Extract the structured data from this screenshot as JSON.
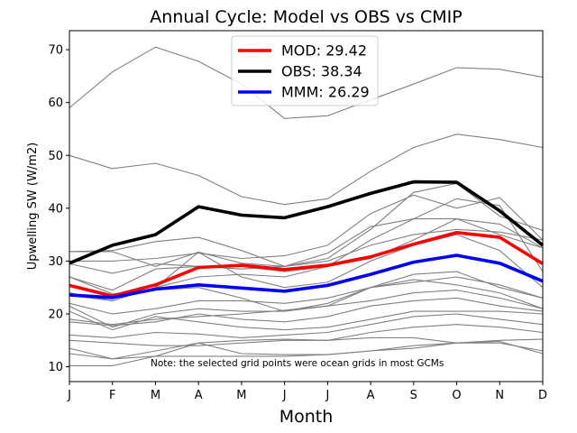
{
  "chart_data": {
    "type": "line",
    "title": "Annual Cycle: Model vs OBS vs CMIP",
    "xlabel": "Month",
    "ylabel": "Upwelling SW (W/m2)",
    "categories": [
      "J",
      "F",
      "M",
      "A",
      "M",
      "J",
      "J",
      "A",
      "S",
      "O",
      "N",
      "D"
    ],
    "ylim": [
      7.2,
      73.6
    ],
    "yticks": [
      10,
      20,
      30,
      40,
      50,
      60,
      70
    ],
    "annotation": "Note: the selected grid points were ocean grids in most GCMs",
    "legend_position": "top-center",
    "background_series": [
      [
        59.0,
        65.8,
        70.5,
        67.8,
        63.5,
        57.0,
        57.5,
        60.5,
        63.5,
        66.6,
        66.3,
        64.8
      ],
      [
        50.0,
        47.5,
        48.5,
        46.2,
        42.2,
        40.7,
        41.8,
        47.0,
        51.5,
        54.0,
        53.0,
        51.5
      ],
      [
        31.8,
        31.8,
        29.0,
        31.7,
        29.6,
        29.0,
        30.5,
        36.0,
        43.0,
        44.7,
        38.5,
        35.8
      ],
      [
        30.0,
        30.0,
        30.5,
        31.5,
        30.5,
        31.0,
        33.0,
        39.0,
        42.5,
        40.0,
        42.0,
        34.0
      ],
      [
        27.0,
        24.5,
        28.5,
        29.0,
        29.0,
        28.0,
        29.0,
        34.0,
        38.0,
        41.8,
        40.5,
        28.0
      ],
      [
        24.0,
        22.5,
        25.0,
        27.0,
        27.5,
        27.0,
        29.0,
        30.5,
        34.0,
        38.0,
        35.0,
        32.5
      ],
      [
        29.5,
        27.7,
        29.5,
        29.0,
        28.5,
        29.0,
        30.0,
        33.0,
        35.0,
        36.0,
        35.5,
        34.0
      ],
      [
        31.8,
        32.0,
        33.7,
        34.5,
        32.0,
        29.0,
        31.5,
        36.5,
        38.0,
        38.0,
        37.0,
        32.5
      ],
      [
        23.5,
        22.5,
        25.0,
        31.7,
        27.0,
        25.0,
        26.0,
        30.0,
        33.0,
        35.0,
        32.0,
        25.0
      ],
      [
        22.0,
        20.0,
        21.0,
        22.5,
        22.5,
        22.0,
        23.0,
        25.0,
        26.0,
        27.0,
        25.5,
        23.0
      ],
      [
        27.0,
        23.8,
        24.5,
        25.0,
        23.0,
        20.5,
        21.5,
        25.0,
        26.5,
        25.5,
        24.0,
        21.0
      ],
      [
        21.5,
        17.5,
        20.0,
        21.0,
        20.5,
        20.5,
        22.0,
        25.0,
        27.5,
        28.0,
        25.0,
        23.0
      ],
      [
        19.0,
        18.0,
        19.0,
        19.5,
        20.0,
        20.7,
        21.5,
        22.5,
        24.0,
        24.5,
        23.0,
        21.0
      ],
      [
        18.5,
        17.8,
        18.5,
        20.0,
        19.0,
        18.5,
        19.5,
        21.5,
        22.5,
        23.0,
        21.5,
        20.5
      ],
      [
        20.5,
        17.0,
        19.5,
        18.5,
        17.5,
        17.0,
        17.5,
        19.0,
        20.5,
        20.5,
        20.5,
        20.0
      ],
      [
        16.0,
        15.5,
        16.5,
        16.2,
        15.5,
        16.0,
        16.5,
        18.0,
        19.5,
        20.0,
        19.0,
        18.0
      ],
      [
        15.0,
        14.5,
        14.0,
        14.0,
        14.5,
        15.0,
        15.0,
        16.5,
        17.5,
        18.0,
        17.5,
        16.5
      ],
      [
        13.5,
        11.5,
        12.0,
        14.5,
        15.0,
        15.2,
        15.0,
        15.5,
        15.5,
        14.5,
        15.0,
        15.2
      ],
      [
        12.5,
        11.5,
        13.0,
        14.5,
        12.5,
        12.3,
        12.3,
        13.0,
        13.5,
        14.5,
        14.5,
        13.0
      ],
      [
        10.2,
        10.2,
        12.0,
        12.0,
        12.0,
        12.0,
        12.3,
        13.0,
        14.0,
        14.5,
        14.8,
        12.5
      ]
    ],
    "series": [
      {
        "name": "MOD",
        "stat": "29.42",
        "color": "#ff0000",
        "values": [
          25.4,
          23.4,
          25.5,
          28.8,
          29.2,
          28.4,
          29.2,
          30.8,
          33.2,
          35.4,
          34.5,
          29.5
        ]
      },
      {
        "name": "OBS",
        "stat": "38.34",
        "color": "#000000",
        "values": [
          29.6,
          33.0,
          35.0,
          40.3,
          38.7,
          38.2,
          40.3,
          42.8,
          45.0,
          44.9,
          39.5,
          33.0
        ]
      },
      {
        "name": "MMM",
        "stat": "26.29",
        "color": "#0000ff",
        "values": [
          23.6,
          23.1,
          24.7,
          25.5,
          24.9,
          24.3,
          25.4,
          27.5,
          29.8,
          31.1,
          29.6,
          26.2
        ]
      }
    ],
    "background_color": "#808080"
  }
}
